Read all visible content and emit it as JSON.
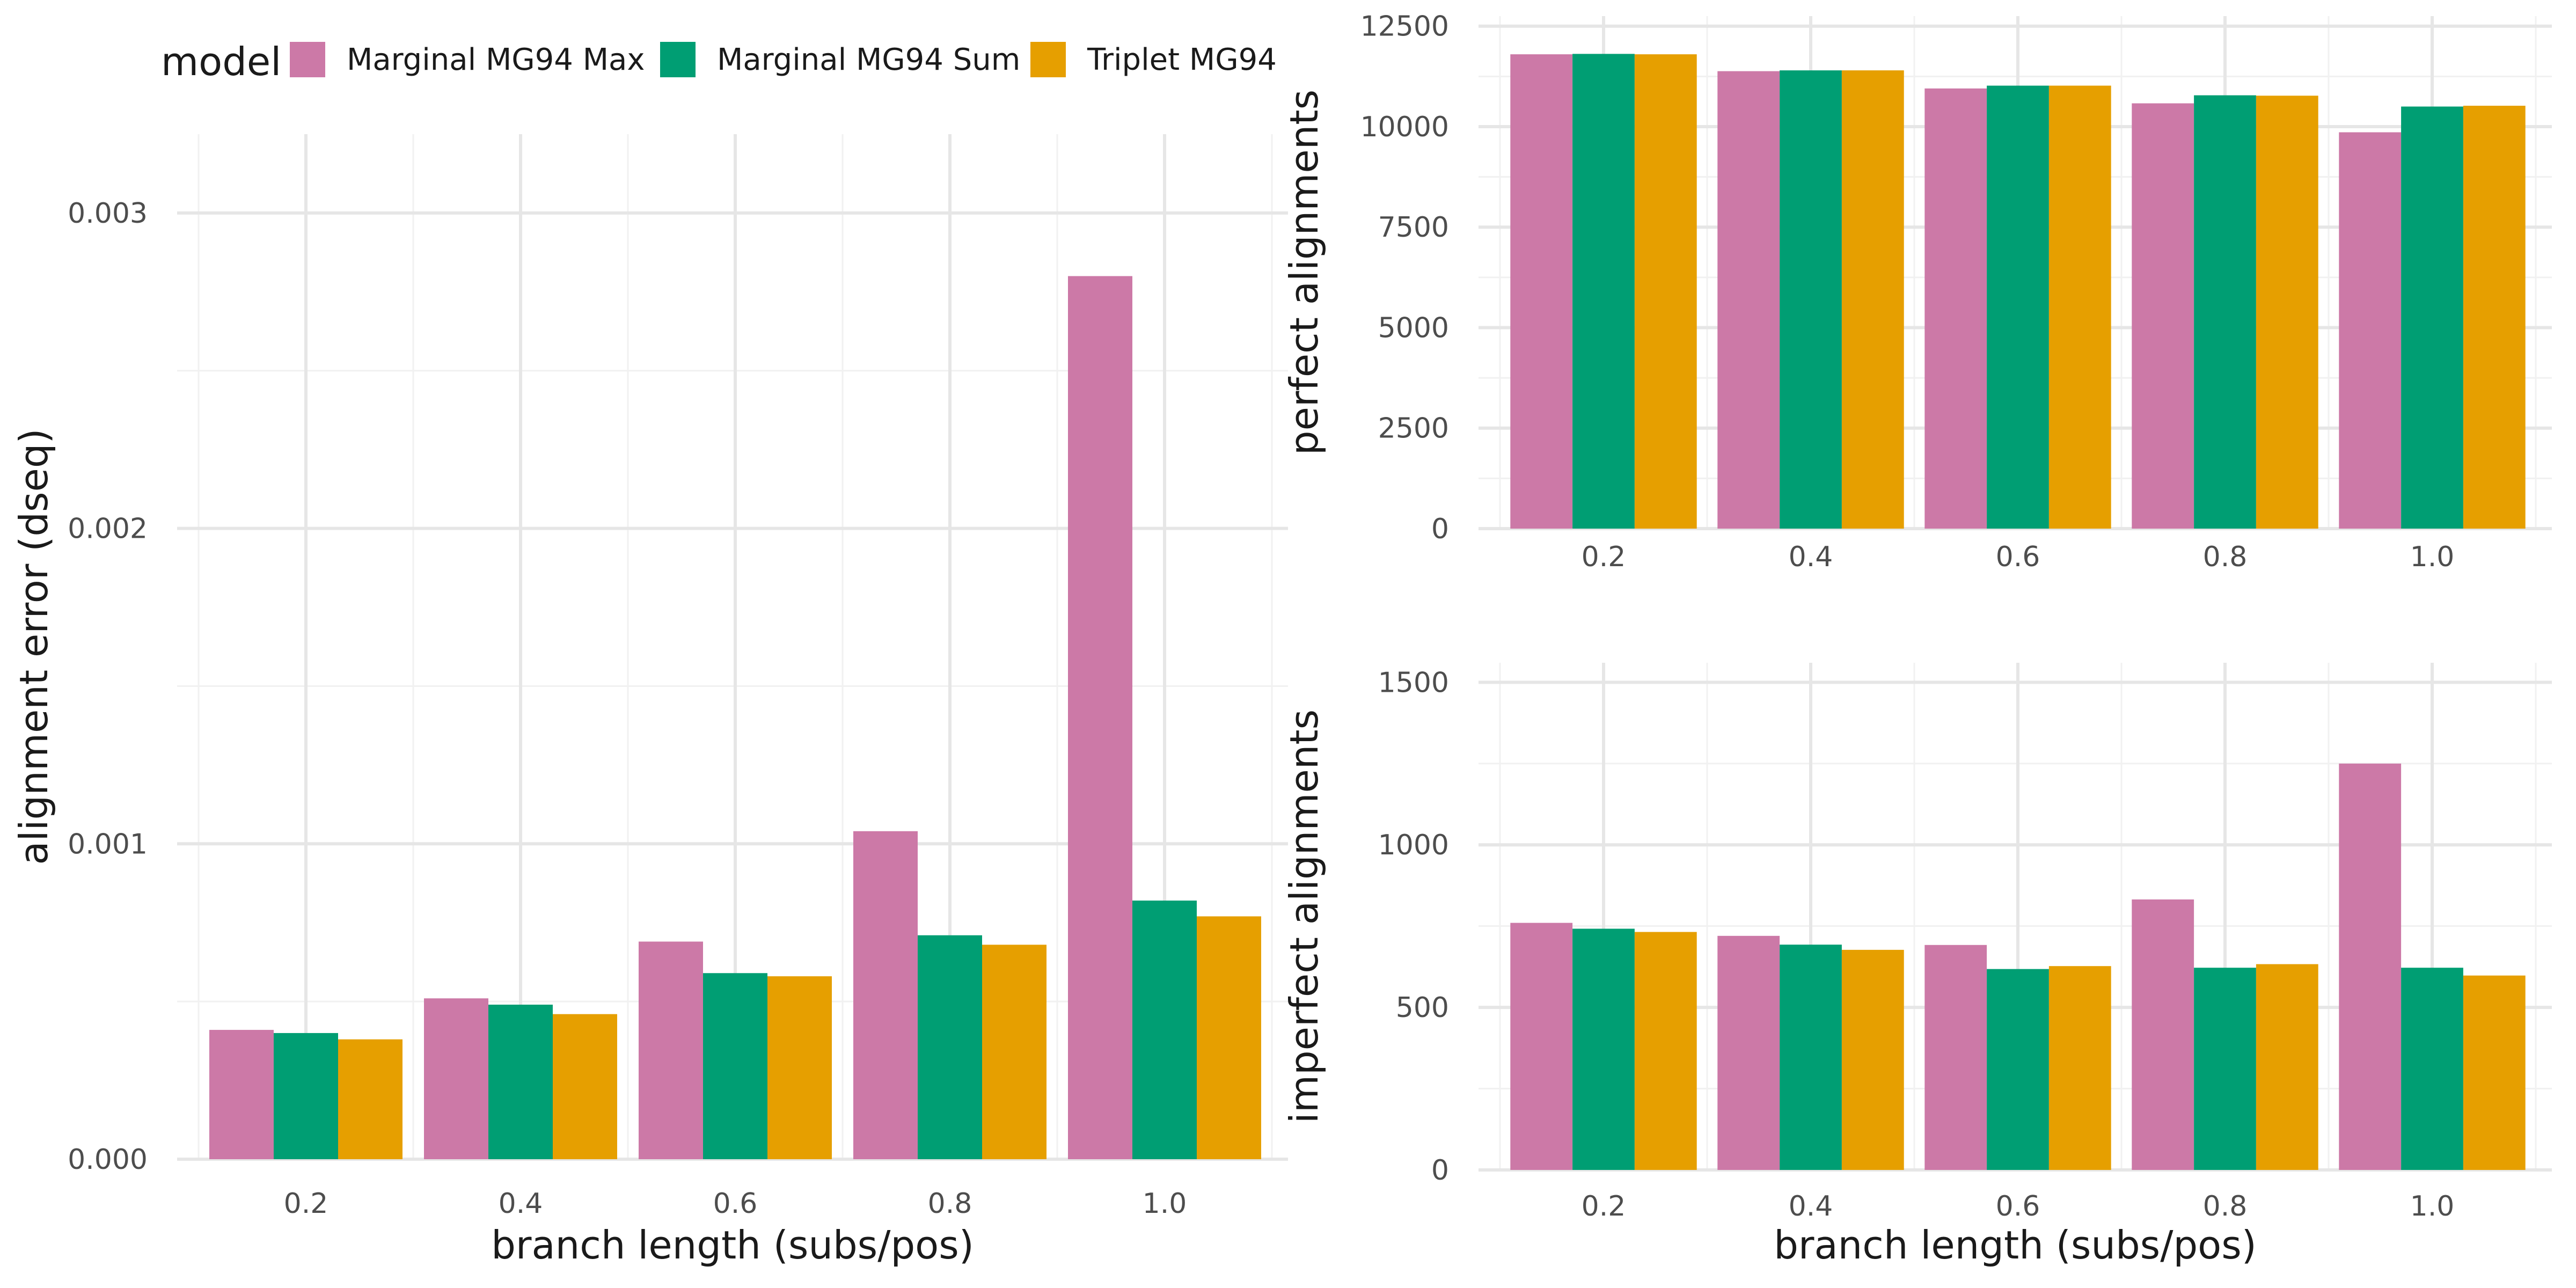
{
  "legend": {
    "title": "model",
    "items": [
      {
        "label": "Marginal MG94 Max",
        "color": "#CC79A7"
      },
      {
        "label": "Marginal MG94 Sum",
        "color": "#009E73"
      },
      {
        "label": "Triplet MG94",
        "color": "#E69F00"
      }
    ]
  },
  "chart_data": [
    {
      "type": "bar",
      "panel": "left",
      "xlabel": "branch length (subs/pos)",
      "ylabel": "alignment error (dseq)",
      "categories": [
        "0.2",
        "0.4",
        "0.6",
        "0.8",
        "1.0"
      ],
      "ylim": [
        0,
        0.00325
      ],
      "yticks": [
        0,
        0.001,
        0.002,
        0.003
      ],
      "ytick_labels": [
        "0.000",
        "0.001",
        "0.002",
        "0.003"
      ],
      "grid": true,
      "series": [
        {
          "name": "Marginal MG94 Max",
          "color": "#CC79A7",
          "values": [
            0.00041,
            0.00051,
            0.00069,
            0.00104,
            0.0028
          ]
        },
        {
          "name": "Marginal MG94 Sum",
          "color": "#009E73",
          "values": [
            0.0004,
            0.00049,
            0.00059,
            0.00071,
            0.00082
          ]
        },
        {
          "name": "Triplet MG94",
          "color": "#E69F00",
          "values": [
            0.00038,
            0.00046,
            0.00058,
            0.00068,
            0.00077
          ]
        }
      ]
    },
    {
      "type": "bar",
      "panel": "top-right",
      "xlabel": "",
      "ylabel": "perfect alignments",
      "categories": [
        "0.2",
        "0.4",
        "0.6",
        "0.8",
        "1.0"
      ],
      "ylim": [
        0,
        12750
      ],
      "yticks": [
        0,
        2500,
        5000,
        7500,
        10000,
        12500
      ],
      "ytick_labels": [
        "0",
        "2500",
        "5000",
        "7500",
        "10000",
        "12500"
      ],
      "grid": true,
      "series": [
        {
          "name": "Marginal MG94 Max",
          "color": "#CC79A7",
          "values": [
            11800,
            11380,
            10950,
            10580,
            9860
          ]
        },
        {
          "name": "Marginal MG94 Sum",
          "color": "#009E73",
          "values": [
            11810,
            11400,
            11020,
            10780,
            10500
          ]
        },
        {
          "name": "Triplet MG94",
          "color": "#E69F00",
          "values": [
            11800,
            11400,
            11020,
            10770,
            10520
          ]
        }
      ]
    },
    {
      "type": "bar",
      "panel": "bottom-right",
      "xlabel": "branch length (subs/pos)",
      "ylabel": "imperfect alignments",
      "categories": [
        "0.2",
        "0.4",
        "0.6",
        "0.8",
        "1.0"
      ],
      "ylim": [
        0,
        1560
      ],
      "yticks": [
        0,
        500,
        1000,
        1500
      ],
      "ytick_labels": [
        "0",
        "500",
        "1000",
        "1500"
      ],
      "grid": true,
      "series": [
        {
          "name": "Marginal MG94 Max",
          "color": "#CC79A7",
          "values": [
            760,
            720,
            692,
            832,
            1250
          ]
        },
        {
          "name": "Marginal MG94 Sum",
          "color": "#009E73",
          "values": [
            742,
            693,
            618,
            622,
            622
          ]
        },
        {
          "name": "Triplet MG94",
          "color": "#E69F00",
          "values": [
            732,
            677,
            627,
            633,
            598
          ]
        }
      ]
    }
  ]
}
